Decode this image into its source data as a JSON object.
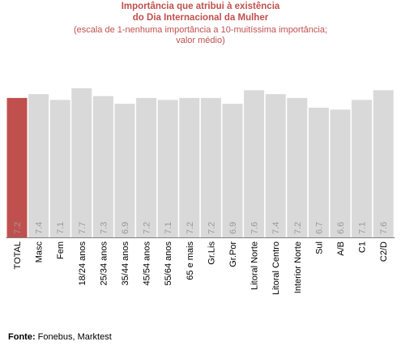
{
  "chart_data": {
    "type": "bar",
    "title_lines": [
      "Importância que atribui à existência",
      "do Dia Internacional da Mulher"
    ],
    "subtitle_lines": [
      "(escala de 1-nenhuma importância a 10-muitíssima importância;",
      "valor médio)"
    ],
    "categories": [
      "TOTAL",
      "Masc",
      "Fem",
      "18/24 anos",
      "25/34 anos",
      "35/44 anos",
      "45/54 anos",
      "55/64 anos",
      "65 e mais",
      "Gr.Lis",
      "Gr.Por",
      "Litoral Norte",
      "Litoral Centro",
      "Interior Norte",
      "Sul",
      "A/B",
      "C1",
      "C2/D"
    ],
    "values": [
      7.2,
      7.4,
      7.1,
      7.7,
      7.3,
      6.9,
      7.2,
      7.1,
      7.2,
      7.2,
      6.9,
      7.6,
      7.4,
      7.2,
      6.7,
      6.6,
      7.1,
      7.6
    ],
    "value_labels": [
      "7.2",
      "7.4",
      "7.1",
      "7.7",
      "7.3",
      "6.9",
      "7.2",
      "7.1",
      "7.2",
      "7.2",
      "6.9",
      "7.6",
      "7.4",
      "7.2",
      "6.7",
      "6.6",
      "7.1",
      "7.6"
    ],
    "highlight_index": 0,
    "colors": {
      "highlight": "#c0504d",
      "bar": "#d9d9d9",
      "value_label": "#9a9a9a",
      "title": "#c0504d",
      "axis": "#808080"
    },
    "ylim": [
      0,
      7.7
    ],
    "grid": false,
    "legend": "none"
  },
  "source": {
    "label": "Fonte:",
    "text": "Fonebus, Marktest"
  }
}
